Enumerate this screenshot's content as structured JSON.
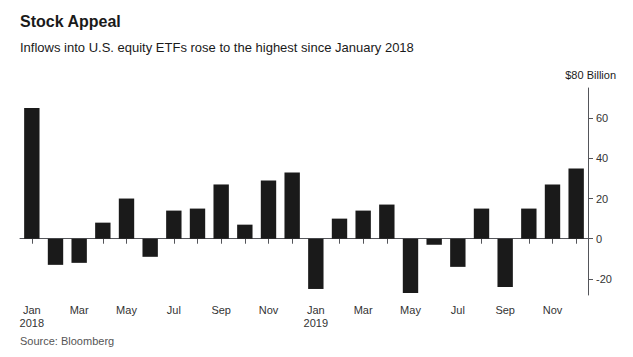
{
  "chart_data": {
    "type": "bar",
    "title": "Stock Appeal",
    "subtitle": "Inflows into U.S. equity ETFs rose to the highest since January 2018",
    "source": "Source: Bloomberg",
    "annotation": "$80 Billion",
    "categories": [
      "Jan\n2018",
      null,
      "Mar",
      null,
      "May",
      null,
      "Jul",
      null,
      "Sep",
      null,
      "Nov",
      null,
      "Jan\n2019",
      null,
      "Mar",
      null,
      "May",
      null,
      "Jul",
      null,
      "Sep",
      null,
      "Nov",
      null
    ],
    "values": [
      65,
      -13,
      -12,
      8,
      20,
      -9,
      14,
      15,
      27,
      7,
      29,
      33,
      -25,
      10,
      14,
      17,
      -27,
      -3,
      -14,
      15,
      -24,
      15,
      27,
      35
    ],
    "color": "#1a1a1a",
    "ylim": [
      -28,
      75
    ],
    "yticks": [
      -20,
      0,
      20,
      40,
      60
    ],
    "grid": false
  }
}
